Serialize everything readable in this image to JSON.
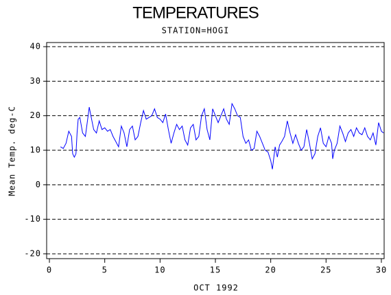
{
  "chart_data": {
    "type": "line",
    "title": "TEMPERATURES",
    "subtitle": "STATION=HOGI",
    "xlabel": "OCT 1992",
    "ylabel": "Mean Temp. deg-C",
    "xlim": [
      -0.25,
      30.25
    ],
    "ylim": [
      -21.4,
      41.2
    ],
    "xticks": [
      0,
      5,
      10,
      15,
      20,
      25,
      30
    ],
    "yticks": [
      -20,
      -10,
      0,
      10,
      20,
      30,
      40
    ],
    "grid": true,
    "series": [
      {
        "name": "Mean Temp",
        "color": "#0000ff",
        "x": [
          1.0,
          1.25,
          1.5,
          1.75,
          2.0,
          2.1,
          2.25,
          2.4,
          2.5,
          2.6,
          2.75,
          3.0,
          3.25,
          3.5,
          3.6,
          3.75,
          4.0,
          4.25,
          4.5,
          4.75,
          5.0,
          5.25,
          5.5,
          5.75,
          6.0,
          6.25,
          6.5,
          6.75,
          7.0,
          7.25,
          7.5,
          7.75,
          8.0,
          8.25,
          8.5,
          8.75,
          9.0,
          9.25,
          9.5,
          9.75,
          10.0,
          10.25,
          10.5,
          10.75,
          11.0,
          11.25,
          11.5,
          11.75,
          12.0,
          12.25,
          12.5,
          12.75,
          13.0,
          13.25,
          13.5,
          13.75,
          14.0,
          14.25,
          14.5,
          14.75,
          15.0,
          15.25,
          15.5,
          15.75,
          16.0,
          16.25,
          16.5,
          16.75,
          17.0,
          17.25,
          17.5,
          17.75,
          18.0,
          18.25,
          18.5,
          18.75,
          19.0,
          19.25,
          19.5,
          19.75,
          20.0,
          20.15,
          20.4,
          20.6,
          20.8,
          21.0,
          21.25,
          21.5,
          21.75,
          22.0,
          22.25,
          22.5,
          22.75,
          23.0,
          23.25,
          23.5,
          23.75,
          24.0,
          24.25,
          24.5,
          24.75,
          25.0,
          25.25,
          25.5,
          25.6,
          25.75,
          26.0,
          26.25,
          26.5,
          26.75,
          27.0,
          27.25,
          27.5,
          27.75,
          28.0,
          28.25,
          28.5,
          28.75,
          29.0,
          29.25,
          29.5,
          29.75,
          30.0,
          30.2
        ],
        "values": [
          11,
          10.5,
          12,
          15.5,
          14,
          9,
          8,
          9,
          15,
          19,
          19.5,
          15,
          14,
          20,
          22.5,
          20,
          16,
          15,
          18.5,
          16,
          16.5,
          15.5,
          16,
          14,
          12.5,
          11,
          17,
          15,
          11,
          16,
          17,
          13,
          14,
          18,
          21.5,
          19,
          19.5,
          20,
          22,
          19.5,
          19,
          18,
          20.5,
          16,
          12,
          15,
          17.5,
          16,
          17,
          13,
          11.5,
          16.5,
          17.5,
          13,
          14,
          20,
          22,
          16,
          13,
          22,
          20,
          18,
          20,
          22,
          19,
          17.5,
          23.5,
          22,
          20,
          19.5,
          14,
          12,
          13,
          10,
          10.5,
          15.5,
          14,
          12,
          10,
          9.5,
          7,
          4.5,
          11,
          8,
          11.5,
          12.5,
          14,
          18.5,
          15,
          12,
          14.5,
          12,
          10,
          11,
          16,
          12,
          7.5,
          9,
          14,
          16.5,
          12,
          11,
          14,
          12,
          7.5,
          10,
          12,
          17,
          15,
          12.5,
          15,
          16,
          14,
          16.5,
          15,
          14.5,
          16.5,
          14,
          13,
          15,
          11.5,
          18,
          15.5,
          15
        ]
      }
    ]
  }
}
